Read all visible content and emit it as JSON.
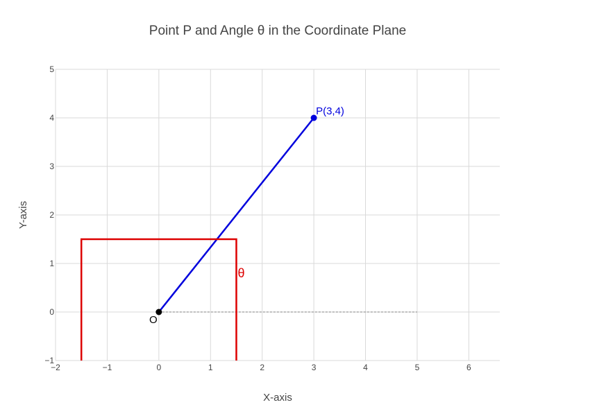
{
  "chart_data": {
    "type": "line",
    "title": "Point P and Angle θ in the Coordinate Plane",
    "xlabel": "X-axis",
    "ylabel": "Y-axis",
    "xlim": [
      -2,
      6.6
    ],
    "ylim": [
      -1,
      5
    ],
    "x_ticks": [
      -2,
      -1,
      0,
      1,
      2,
      3,
      4,
      5,
      6
    ],
    "y_ticks": [
      -1,
      0,
      1,
      2,
      3,
      4,
      5
    ],
    "x_tick_labels": [
      "−2",
      "−1",
      "0",
      "1",
      "2",
      "3",
      "4",
      "5",
      "6"
    ],
    "y_tick_labels": [
      "−1",
      "0",
      "1",
      "2",
      "3",
      "4",
      "5"
    ],
    "grid": true,
    "series": [
      {
        "x": [
          0,
          3
        ],
        "y": [
          0,
          4
        ],
        "color": "#0000dd",
        "style": "solid"
      },
      {
        "x": [
          0,
          5
        ],
        "y": [
          0,
          0
        ],
        "color": "#999999",
        "style": "dotted"
      },
      {
        "x": [
          -1.5,
          -1.5,
          1.5,
          1.5
        ],
        "y": [
          -1,
          1.5,
          1.5,
          -1
        ],
        "color": "#dd0000",
        "style": "solid"
      }
    ],
    "points": [
      {
        "x": 0,
        "y": 0,
        "label": "O",
        "color": "#000000"
      },
      {
        "x": 3,
        "y": 4,
        "label": "P(3,4)",
        "color": "#0000dd"
      }
    ],
    "annotations": [
      {
        "text": "θ",
        "x": 1.5,
        "y": 0.8,
        "color": "#dd0000"
      }
    ]
  }
}
